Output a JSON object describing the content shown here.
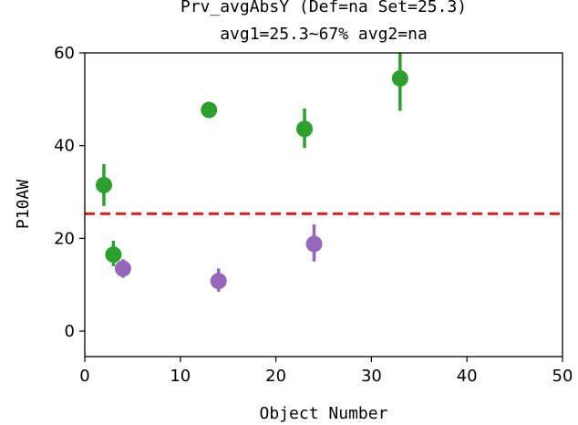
{
  "chart_data": {
    "type": "scatter",
    "title_line1": "Prv_avgAbsY (Def=na Set=25.3)",
    "title_line2": "avg1=25.3~67% avg2=na",
    "xlabel": "Object Number",
    "ylabel": "P10AW",
    "xlim": [
      0,
      50
    ],
    "ylim": [
      -5.5,
      60
    ],
    "x_ticks": [
      0,
      10,
      20,
      30,
      40,
      50
    ],
    "y_ticks": [
      0,
      20,
      40,
      60
    ],
    "grid": false,
    "reference_line": {
      "y": 25.3,
      "color": "#e8201a",
      "style": "dashed"
    },
    "series": [
      {
        "color": "#2ca02c",
        "points": [
          {
            "x": 2,
            "y": 31.5,
            "err_low": 27.0,
            "err_high": 36.0
          },
          {
            "x": 3,
            "y": 16.5,
            "err_low": 14.0,
            "err_high": 19.5
          },
          {
            "x": 13,
            "y": 47.7,
            "err_low": 47.7,
            "err_high": 47.7
          },
          {
            "x": 23,
            "y": 43.6,
            "err_low": 39.5,
            "err_high": 48.0
          },
          {
            "x": 33,
            "y": 54.5,
            "err_low": 47.5,
            "err_high": 60.5
          }
        ]
      },
      {
        "color": "#9467bd",
        "points": [
          {
            "x": 4,
            "y": 13.5,
            "err_low": 11.5,
            "err_high": 15.5
          },
          {
            "x": 14,
            "y": 10.8,
            "err_low": 8.5,
            "err_high": 13.5
          },
          {
            "x": 24,
            "y": 18.8,
            "err_low": 15.0,
            "err_high": 23.0
          }
        ]
      }
    ]
  }
}
